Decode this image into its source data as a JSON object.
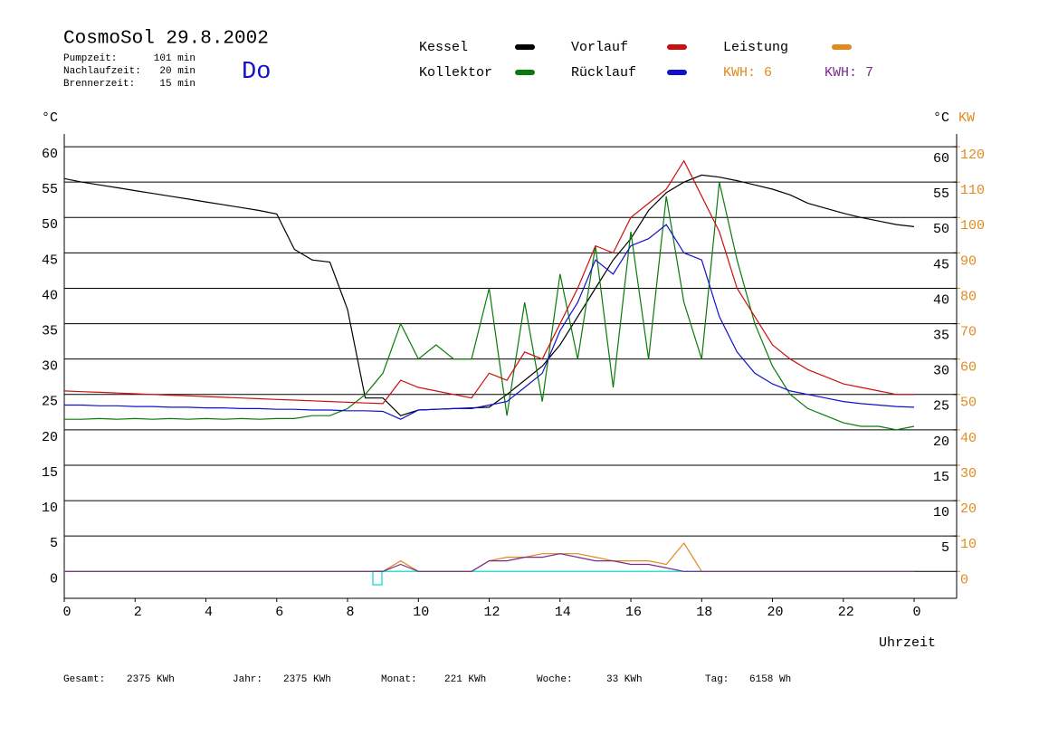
{
  "chart_data": {
    "type": "line",
    "title": "CosmoSol 29.8.2002",
    "day": "Do",
    "info": [
      {
        "label": "Pumpzeit:",
        "value": "101 min"
      },
      {
        "label": "Nachlaufzeit:",
        "value": "20 min"
      },
      {
        "label": "Brennerzeit:",
        "value": "15 min"
      }
    ],
    "y_unit": "°C",
    "y_right_unit": "°C",
    "y2_unit": "KW",
    "x_label": "Uhrzeit",
    "annotations": [
      {
        "text": "KWH: 6",
        "color": "#e08a1e"
      },
      {
        "text": "KWH: 7",
        "color": "#7a2a8c"
      }
    ],
    "footer": [
      {
        "label": "Gesamt:",
        "value": "2375 KWh"
      },
      {
        "label": "Jahr:",
        "value": "2375 KWh"
      },
      {
        "label": "Monat:",
        "value": "221 KWh"
      },
      {
        "label": "Woche:",
        "value": "33 KWh"
      },
      {
        "label": "Tag:",
        "value": "6158 Wh"
      }
    ],
    "xlim": [
      0,
      25.2
    ],
    "xticks": [
      0,
      2,
      4,
      6,
      8,
      10,
      12,
      14,
      16,
      18,
      20,
      22,
      {
        "value": 24,
        "label": "0"
      }
    ],
    "ylim": [
      -3.8,
      61.8
    ],
    "yticks": [
      0,
      5,
      10,
      15,
      20,
      25,
      30,
      35,
      40,
      45,
      50,
      55,
      60
    ],
    "y_right_ticks": [
      5,
      10,
      15,
      20,
      25,
      30,
      35,
      40,
      45,
      50,
      55,
      60
    ],
    "y2lim": [
      -7.6,
      123.6
    ],
    "y2ticks": [
      0,
      10,
      20,
      30,
      40,
      50,
      60,
      70,
      80,
      90,
      100,
      110,
      120
    ],
    "grid": true,
    "baseline_color": "#33dddd",
    "x": [
      0,
      0.5,
      1,
      1.5,
      2,
      2.5,
      3,
      3.5,
      4,
      4.5,
      5,
      5.5,
      6,
      6.5,
      7,
      7.5,
      8,
      8.5,
      9,
      9.5,
      10,
      10.5,
      11,
      11.5,
      12,
      12.5,
      13,
      13.5,
      14,
      14.5,
      15,
      15.5,
      16,
      16.5,
      17,
      17.5,
      18,
      18.5,
      19,
      19.5,
      20,
      20.5,
      21,
      21.5,
      22,
      22.5,
      23,
      23.5,
      24
    ],
    "series": [
      {
        "name": "Kessel",
        "color": "#000000",
        "values": [
          55.5,
          55,
          54.6,
          54.2,
          53.8,
          53.4,
          53,
          52.6,
          52.2,
          51.8,
          51.4,
          51,
          50.5,
          45.5,
          44,
          43.7,
          37,
          24.5,
          24.5,
          22,
          22.8,
          22.9,
          23,
          23.1,
          23.2,
          25,
          27,
          29,
          32,
          36,
          40,
          44,
          47,
          51,
          53.5,
          55,
          56,
          55.7,
          55.2,
          54.6,
          54,
          53.2,
          52,
          51.3,
          50.6,
          50,
          49.5,
          49,
          48.7
        ]
      },
      {
        "name": "Kollektor",
        "color": "#0a7a0a",
        "values": [
          21.5,
          21.5,
          21.6,
          21.5,
          21.6,
          21.5,
          21.6,
          21.5,
          21.6,
          21.5,
          21.6,
          21.5,
          21.6,
          21.6,
          22,
          22,
          23,
          25,
          28,
          35,
          30,
          32,
          30,
          30,
          40,
          22,
          38,
          24,
          42,
          30,
          46,
          26,
          48,
          30,
          53,
          38,
          30,
          55,
          44,
          35,
          29,
          25,
          23,
          22,
          21,
          20.5,
          20.5,
          20,
          20.5
        ]
      },
      {
        "name": "Vorlauf",
        "color": "#cc1010",
        "values": [
          25.5,
          25.4,
          25.3,
          25.2,
          25.1,
          25,
          24.9,
          24.8,
          24.7,
          24.6,
          24.5,
          24.4,
          24.3,
          24.2,
          24.1,
          24,
          23.9,
          23.8,
          23.7,
          27,
          26,
          25.5,
          25,
          24.5,
          28,
          27,
          31,
          30,
          35,
          40,
          46,
          45,
          50,
          52,
          54,
          58,
          53,
          48,
          40,
          36,
          32,
          30,
          28.5,
          27.5,
          26.5,
          26,
          25.5,
          25,
          25
        ]
      },
      {
        "name": "Rücklauf",
        "color": "#1010cc",
        "values": [
          23.5,
          23.5,
          23.4,
          23.4,
          23.3,
          23.3,
          23.2,
          23.2,
          23.1,
          23.1,
          23,
          23,
          22.9,
          22.9,
          22.8,
          22.8,
          22.7,
          22.7,
          22.6,
          21.5,
          22.8,
          22.9,
          23,
          23,
          23.5,
          24,
          26,
          28,
          34,
          38,
          44,
          42,
          46,
          47,
          49,
          45,
          44,
          36,
          31,
          28,
          26.5,
          25.5,
          25,
          24.5,
          24,
          23.7,
          23.5,
          23.3,
          23.2
        ]
      },
      {
        "name": "Leistung",
        "color": "#e08a1e",
        "axis": "y2",
        "values": [
          0,
          0,
          0,
          0,
          0,
          0,
          0,
          0,
          0,
          0,
          0,
          0,
          0,
          0,
          0,
          0,
          0,
          0,
          0,
          3,
          0,
          0,
          0,
          0,
          3,
          4,
          4,
          5,
          5,
          5,
          4,
          3,
          3,
          3,
          2,
          8,
          0,
          0,
          0,
          0,
          0,
          0,
          0,
          0,
          0,
          0,
          0,
          0,
          0
        ]
      },
      {
        "color": "#7a2a8c",
        "axis": "y2",
        "values": [
          0,
          0,
          0,
          0,
          0,
          0,
          0,
          0,
          0,
          0,
          0,
          0,
          0,
          0,
          0,
          0,
          0,
          0,
          0,
          2,
          0,
          0,
          0,
          0,
          3,
          3,
          4,
          4,
          5,
          4,
          3,
          3,
          2,
          2,
          1,
          0,
          0,
          0,
          0,
          0,
          0,
          0,
          0,
          0,
          0,
          0,
          0,
          0,
          0
        ]
      }
    ]
  }
}
